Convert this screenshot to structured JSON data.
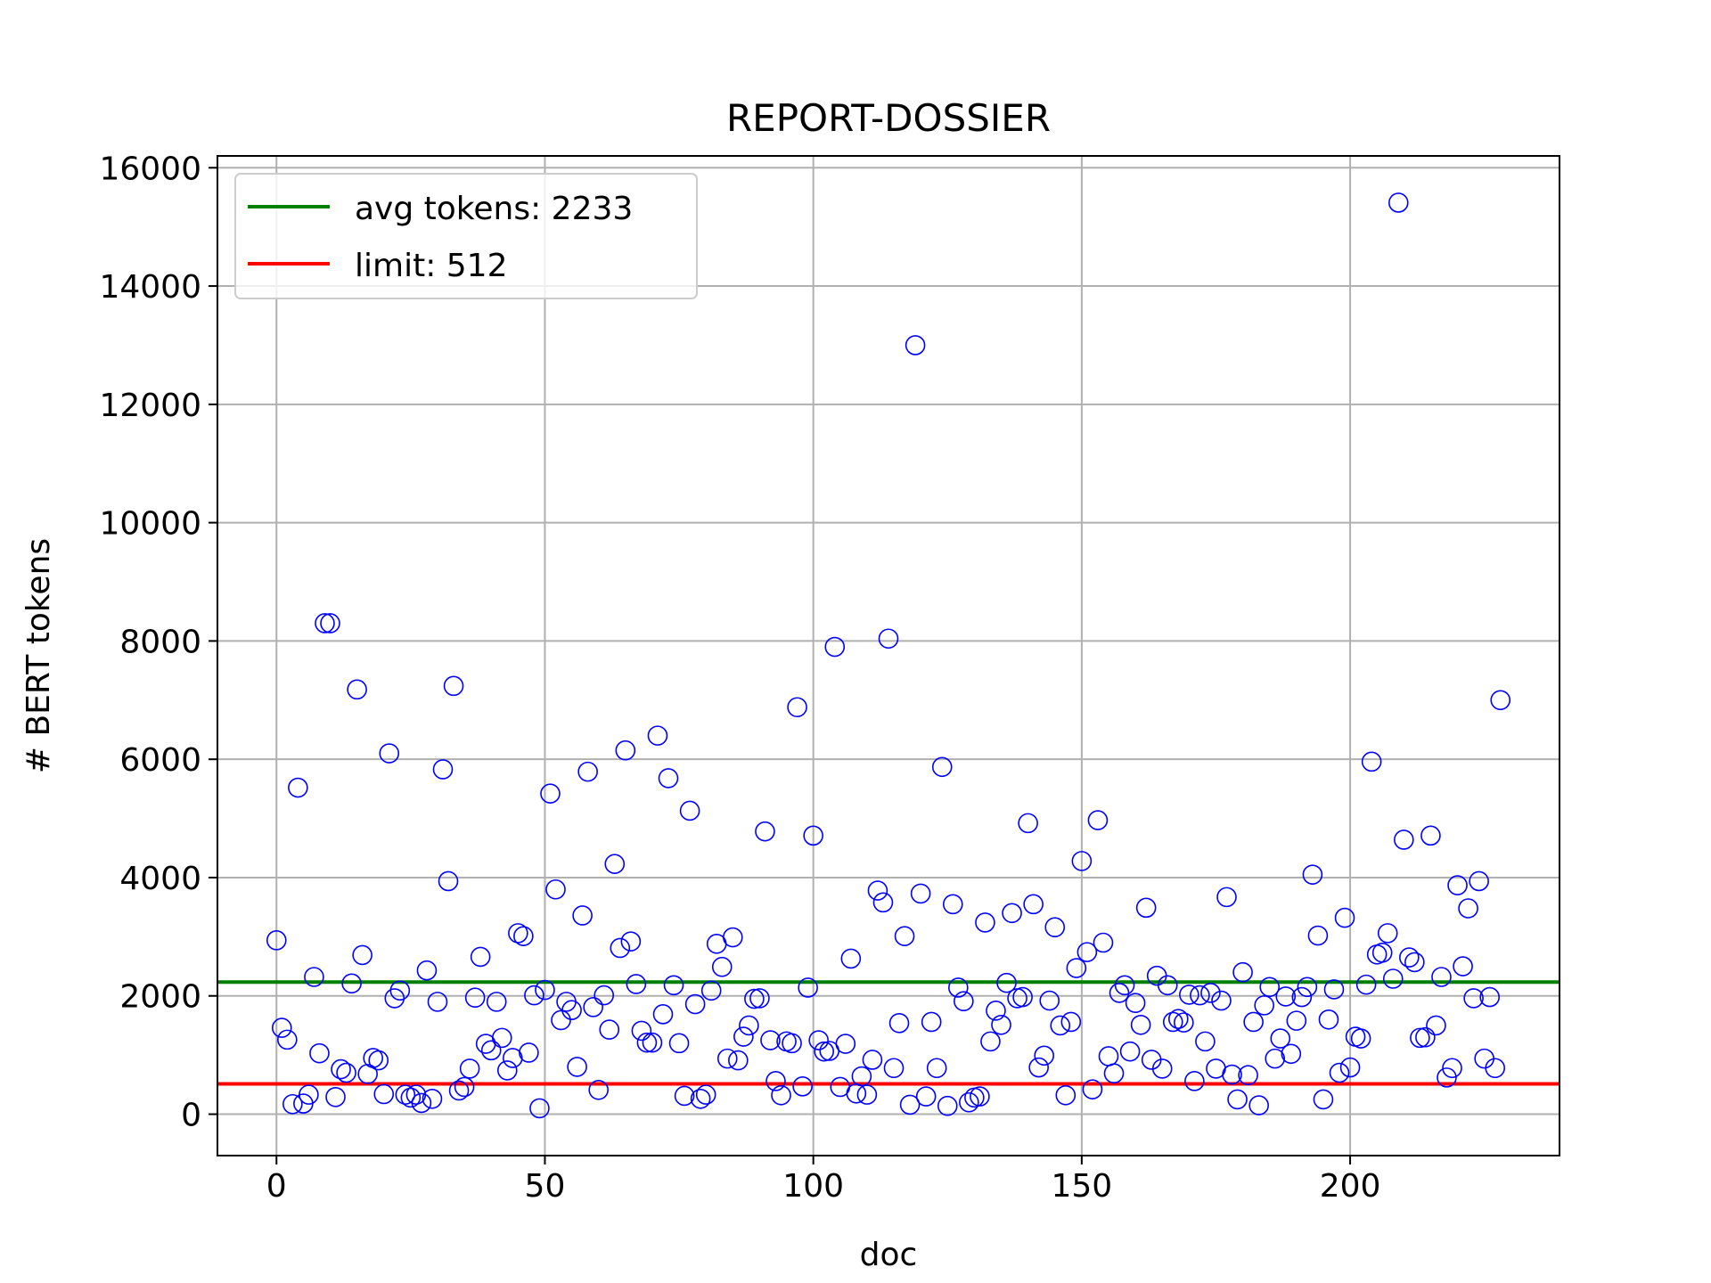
{
  "chart_data": {
    "type": "scatter",
    "title": "REPORT-DOSSIER",
    "xlabel": "doc",
    "ylabel": "# BERT tokens",
    "xlim": [
      -11,
      239
    ],
    "ylim": [
      -700,
      16200
    ],
    "xticks": [
      0,
      50,
      100,
      150,
      200
    ],
    "yticks": [
      0,
      2000,
      4000,
      6000,
      8000,
      10000,
      12000,
      14000,
      16000
    ],
    "grid": true,
    "legend_position": "upper left",
    "marker": {
      "shape": "open-circle",
      "color": "#0000ff"
    },
    "hlines": [
      {
        "label": "avg tokens: 2233",
        "y": 2233,
        "color": "#008000"
      },
      {
        "label": "limit: 512",
        "y": 512,
        "color": "#ff0000"
      }
    ],
    "x": [
      0,
      1,
      2,
      3,
      4,
      5,
      6,
      7,
      8,
      9,
      10,
      11,
      12,
      13,
      14,
      15,
      16,
      17,
      18,
      19,
      20,
      21,
      22,
      23,
      24,
      25,
      26,
      27,
      28,
      29,
      30,
      31,
      32,
      33,
      34,
      35,
      36,
      37,
      38,
      39,
      40,
      41,
      42,
      43,
      44,
      45,
      46,
      47,
      48,
      49,
      50,
      51,
      52,
      53,
      54,
      55,
      56,
      57,
      58,
      59,
      60,
      61,
      62,
      63,
      64,
      65,
      66,
      67,
      68,
      69,
      70,
      71,
      72,
      73,
      74,
      75,
      76,
      77,
      78,
      79,
      80,
      81,
      82,
      83,
      84,
      85,
      86,
      87,
      88,
      89,
      90,
      91,
      92,
      93,
      94,
      95,
      96,
      97,
      98,
      99,
      100,
      101,
      102,
      103,
      104,
      105,
      106,
      107,
      108,
      109,
      110,
      111,
      112,
      113,
      114,
      115,
      116,
      117,
      118,
      119,
      120,
      121,
      122,
      123,
      124,
      125,
      126,
      127,
      128,
      129,
      130,
      131,
      132,
      133,
      134,
      135,
      136,
      137,
      138,
      139,
      140,
      141,
      142,
      143,
      144,
      145,
      146,
      147,
      148,
      149,
      150,
      151,
      152,
      153,
      154,
      155,
      156,
      157,
      158,
      159,
      160,
      161,
      162,
      163,
      164,
      165,
      166,
      167,
      168,
      169,
      170,
      171,
      172,
      173,
      174,
      175,
      176,
      177,
      178,
      179,
      180,
      181,
      182,
      183,
      184,
      185,
      186,
      187,
      188,
      189,
      190,
      191,
      192,
      193,
      194,
      195,
      196,
      197,
      198,
      199,
      200,
      201,
      202,
      203,
      204,
      205,
      206,
      207,
      208,
      209,
      210,
      211,
      212,
      213,
      214,
      215,
      216,
      217,
      218,
      219,
      220,
      221,
      222,
      223,
      224,
      225,
      226,
      227,
      228
    ],
    "y": [
      2940,
      1460,
      1260,
      170,
      5520,
      180,
      330,
      2320,
      1030,
      8300,
      8300,
      290,
      760,
      700,
      2210,
      7180,
      2690,
      680,
      950,
      910,
      340,
      6100,
      1960,
      2090,
      330,
      280,
      330,
      190,
      2430,
      260,
      1900,
      5830,
      3940,
      7240,
      400,
      460,
      770,
      1970,
      2660,
      1190,
      1080,
      1900,
      1290,
      740,
      950,
      3060,
      3010,
      1040,
      2010,
      100,
      2100,
      5420,
      3800,
      1590,
      1900,
      1760,
      800,
      3360,
      5790,
      1810,
      410,
      2010,
      1430,
      4230,
      2810,
      6150,
      2920,
      2200,
      1410,
      1210,
      1210,
      6400,
      1690,
      5680,
      2180,
      1200,
      310,
      5130,
      1860,
      260,
      330,
      2090,
      2880,
      2490,
      940,
      2990,
      910,
      1310,
      1500,
      1950,
      1960,
      4780,
      1250,
      560,
      320,
      1230,
      1200,
      6880,
      470,
      2140,
      4710,
      1250,
      1060,
      1070,
      7900,
      460,
      1190,
      2630,
      350,
      640,
      330,
      920,
      3780,
      3580,
      8040,
      780,
      1540,
      3010,
      160,
      13000,
      3730,
      300,
      1560,
      780,
      5870,
      140,
      3550,
      2140,
      1910,
      200,
      280,
      300,
      3240,
      1230,
      1750,
      1510,
      2220,
      3400,
      1960,
      1980,
      4920,
      3550,
      790,
      990,
      1920,
      3160,
      1500,
      320,
      1560,
      2470,
      4280,
      2740,
      420,
      4970,
      2900,
      980,
      690,
      2050,
      2180,
      1060,
      1880,
      1510,
      3490,
      920,
      2340,
      770,
      2180,
      1560,
      1610,
      1550,
      2020,
      560,
      2010,
      1230,
      2050,
      770,
      1920,
      3670,
      670,
      250,
      2400,
      660,
      1560,
      150,
      1840,
      2150,
      940,
      1280,
      1990,
      1020,
      1580,
      1980,
      2150,
      4050,
      3020,
      250,
      1600,
      2110,
      700,
      3320,
      790,
      1310,
      1280,
      2190,
      5960,
      2700,
      2730,
      3060,
      2290,
      15410,
      4640,
      2650,
      2570,
      1290,
      1300,
      4710,
      1500,
      2320,
      620,
      780,
      3870,
      2500,
      3480,
      1960,
      3940,
      940,
      1980,
      780,
      7000
    ]
  }
}
